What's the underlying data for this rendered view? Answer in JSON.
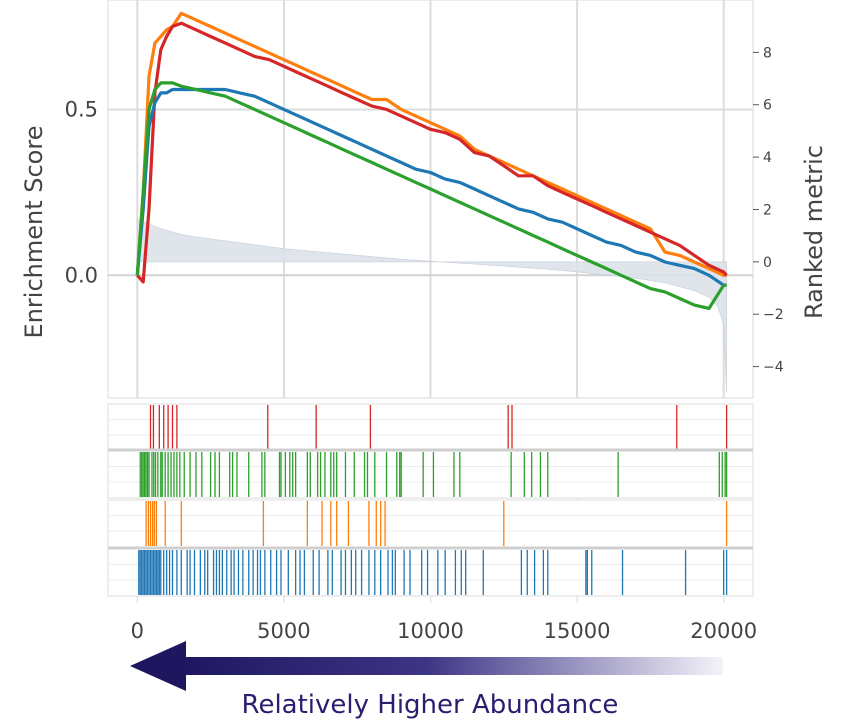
{
  "chart_data": {
    "type": "line",
    "title": "",
    "x": [
      0,
      200,
      400,
      600,
      800,
      1000,
      1200,
      1500,
      2000,
      2500,
      3000,
      3500,
      4000,
      4500,
      5000,
      5500,
      6000,
      6500,
      7000,
      7500,
      8000,
      8500,
      9000,
      9500,
      10000,
      10500,
      11000,
      11500,
      12000,
      12500,
      13000,
      13500,
      14000,
      14500,
      15000,
      15500,
      16000,
      16500,
      17000,
      17500,
      18000,
      18500,
      19000,
      19500,
      20000,
      20100
    ],
    "series": [
      {
        "color": "#ff7f0e",
        "values": [
          0,
          0.25,
          0.6,
          0.7,
          0.72,
          0.74,
          0.75,
          0.79,
          0.77,
          0.75,
          0.73,
          0.71,
          0.69,
          0.67,
          0.65,
          0.63,
          0.61,
          0.59,
          0.57,
          0.55,
          0.53,
          0.53,
          0.5,
          0.48,
          0.46,
          0.44,
          0.42,
          0.38,
          0.36,
          0.34,
          0.32,
          0.3,
          0.28,
          0.26,
          0.24,
          0.22,
          0.2,
          0.18,
          0.16,
          0.14,
          0.07,
          0.06,
          0.04,
          0.02,
          0.0,
          0.0
        ]
      },
      {
        "color": "#d62728",
        "values": [
          0,
          -0.02,
          0.2,
          0.55,
          0.68,
          0.72,
          0.75,
          0.76,
          0.74,
          0.72,
          0.7,
          0.68,
          0.66,
          0.65,
          0.63,
          0.61,
          0.59,
          0.57,
          0.55,
          0.53,
          0.51,
          0.5,
          0.48,
          0.46,
          0.44,
          0.43,
          0.41,
          0.37,
          0.36,
          0.33,
          0.3,
          0.3,
          0.27,
          0.25,
          0.23,
          0.21,
          0.19,
          0.17,
          0.15,
          0.13,
          0.11,
          0.09,
          0.06,
          0.03,
          0.01,
          0.0
        ]
      },
      {
        "color": "#1f77b4",
        "values": [
          0,
          0.2,
          0.45,
          0.52,
          0.55,
          0.55,
          0.56,
          0.56,
          0.56,
          0.56,
          0.56,
          0.55,
          0.54,
          0.52,
          0.5,
          0.48,
          0.46,
          0.44,
          0.42,
          0.4,
          0.38,
          0.36,
          0.34,
          0.32,
          0.31,
          0.29,
          0.28,
          0.26,
          0.24,
          0.22,
          0.2,
          0.19,
          0.17,
          0.16,
          0.14,
          0.12,
          0.1,
          0.09,
          0.07,
          0.06,
          0.04,
          0.03,
          0.02,
          0.0,
          -0.03,
          -0.03
        ]
      },
      {
        "color": "#2ca02c",
        "values": [
          0,
          0.25,
          0.5,
          0.56,
          0.58,
          0.58,
          0.58,
          0.57,
          0.56,
          0.55,
          0.54,
          0.52,
          0.5,
          0.48,
          0.46,
          0.44,
          0.42,
          0.4,
          0.38,
          0.36,
          0.34,
          0.32,
          0.3,
          0.28,
          0.26,
          0.24,
          0.22,
          0.2,
          0.18,
          0.16,
          0.14,
          0.12,
          0.1,
          0.08,
          0.06,
          0.04,
          0.02,
          0.0,
          -0.02,
          -0.04,
          -0.05,
          -0.07,
          -0.09,
          -0.1,
          -0.03,
          -0.03
        ]
      }
    ],
    "ranked_metric": {
      "x": [
        0,
        300,
        600,
        1000,
        1500,
        2000,
        3000,
        4000,
        5000,
        6000,
        7000,
        8000,
        9000,
        10000,
        11000,
        12000,
        13000,
        14000,
        15000,
        16000,
        17000,
        18000,
        19000,
        19500,
        19800,
        20000,
        20100
      ],
      "values": [
        1.6,
        1.5,
        1.35,
        1.2,
        1.05,
        0.95,
        0.8,
        0.65,
        0.5,
        0.4,
        0.3,
        0.2,
        0.1,
        0.02,
        -0.05,
        -0.12,
        -0.2,
        -0.28,
        -0.38,
        -0.5,
        -0.62,
        -0.8,
        -1.1,
        -1.35,
        -1.7,
        -2.4,
        -5.0
      ]
    },
    "ylabel": "Enrichment Score",
    "ylabel_right": "Ranked metric",
    "xlabel": "",
    "xlim": [
      -1000,
      21000
    ],
    "ylim": [
      -0.37,
      0.83
    ],
    "ylim_right": [
      -5.2,
      10.0
    ],
    "xticks": [
      0,
      5000,
      10000,
      15000,
      20000
    ],
    "xtick_labels": [
      "0",
      "5000",
      "10000",
      "15000",
      "20000"
    ],
    "yticks": [
      0.0,
      0.5
    ],
    "ytick_labels": [
      "0.0",
      "0.5"
    ],
    "yticks_right": [
      -4,
      -2,
      0,
      2,
      4,
      6,
      8
    ],
    "ytick_right_labels": [
      "−4",
      "−2",
      "0",
      "2",
      "4",
      "6",
      "8"
    ],
    "grid": true,
    "hits": [
      {
        "color": "#d62728",
        "positions": [
          450,
          550,
          750,
          900,
          1050,
          1200,
          1350,
          4450,
          6100,
          7950,
          12650,
          12780,
          18400,
          20100
        ]
      },
      {
        "color": "#2ca02c",
        "positions": [
          100,
          150,
          200,
          250,
          300,
          350,
          400,
          500,
          560,
          620,
          700,
          800,
          850,
          950,
          1050,
          1150,
          1250,
          1350,
          1450,
          1600,
          1800,
          2000,
          2200,
          2500,
          2650,
          2800,
          3150,
          3250,
          3400,
          3800,
          4250,
          4350,
          4850,
          4900,
          5050,
          5200,
          5300,
          5400,
          5800,
          5900,
          6150,
          6250,
          6400,
          6600,
          6700,
          6800,
          7100,
          7400,
          7750,
          7850,
          8100,
          8500,
          8850,
          8950,
          9000,
          9750,
          10100,
          10800,
          11000,
          12750,
          13200,
          13450,
          13750,
          14000,
          16400,
          19850,
          19950,
          20050,
          20100
        ]
      },
      {
        "color": "#ff7f0e",
        "positions": [
          300,
          380,
          450,
          520,
          580,
          650,
          950,
          1500,
          4300,
          5800,
          6300,
          6600,
          6800,
          7200,
          7900,
          8150,
          8300,
          8450,
          12500,
          20100
        ]
      },
      {
        "color": "#1f77b4",
        "positions": [
          50,
          100,
          150,
          200,
          250,
          300,
          350,
          400,
          450,
          500,
          550,
          600,
          650,
          700,
          750,
          800,
          900,
          1000,
          1100,
          1200,
          1350,
          1500,
          1700,
          1800,
          1950,
          2150,
          2300,
          2400,
          2600,
          2700,
          2800,
          2900,
          3050,
          3200,
          3300,
          3450,
          3600,
          3800,
          3950,
          4100,
          4200,
          4350,
          4550,
          4750,
          4900,
          5150,
          5400,
          5550,
          5700,
          6000,
          6200,
          6500,
          6650,
          6950,
          7100,
          7300,
          7450,
          7650,
          7900,
          8100,
          8300,
          8550,
          8700,
          8800,
          9100,
          9300,
          9700,
          9900,
          10250,
          10500,
          10850,
          11050,
          11200,
          11800,
          13100,
          13300,
          13550,
          13850,
          14000,
          15300,
          15350,
          15500,
          16550,
          18700,
          20000,
          20100
        ]
      }
    ]
  },
  "arrow_label": "Relatively Higher Abundance",
  "arrow_color_start": "#1e1760",
  "arrow_color_end": "#ffffff"
}
